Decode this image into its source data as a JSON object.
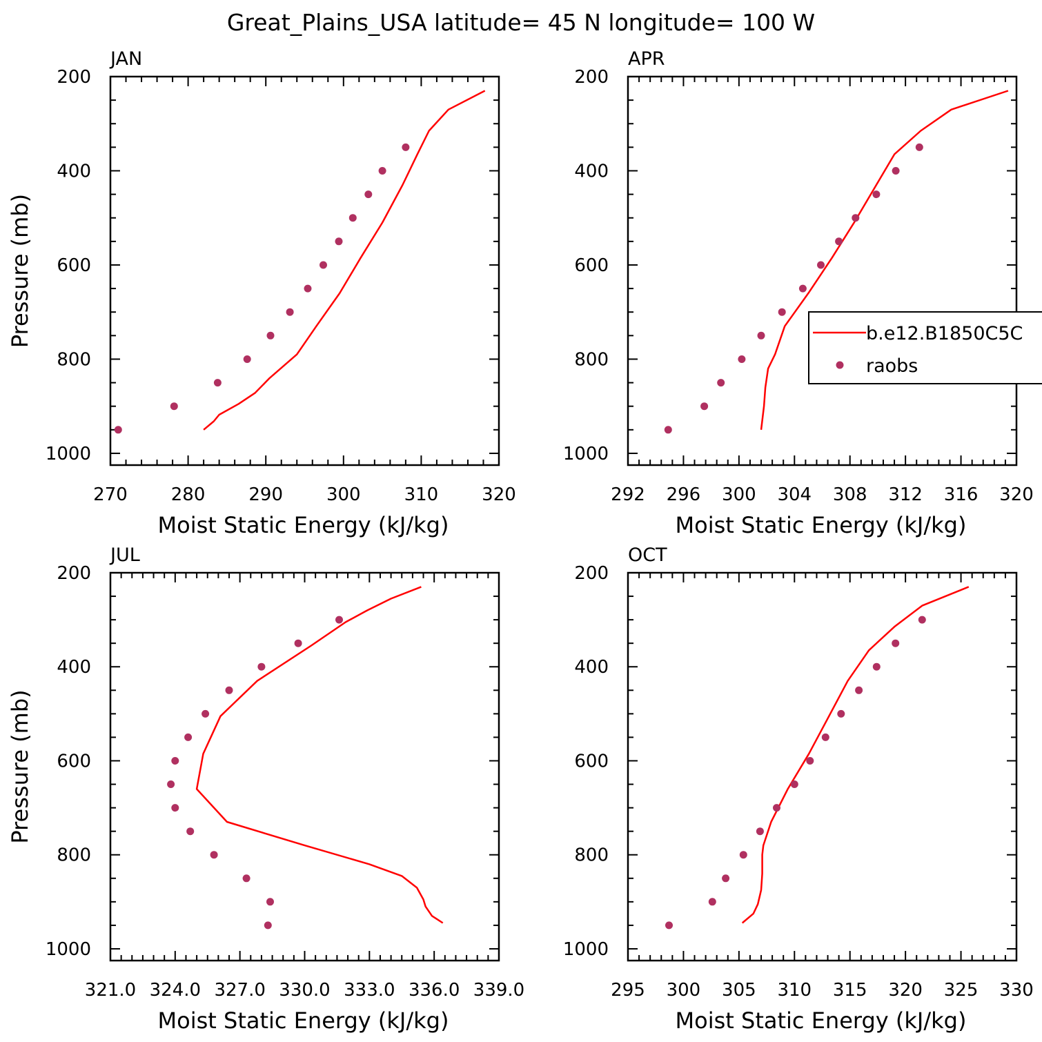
{
  "figure_title": "Great_Plains_USA  latitude= 45 N longitude= 100 W",
  "colors": {
    "model": "#ff0000",
    "obs": "#b03060",
    "axes": "#000000"
  },
  "legend": {
    "model_label": "b.e12.B1850C5C",
    "obs_label": "raobs",
    "placement": "right, inside APR panel"
  },
  "chart_data": [
    {
      "type": "line",
      "panel": "JAN",
      "xlabel": "Moist Static Energy (kJ/kg)",
      "ylabel": "Pressure (mb)",
      "xlim": [
        270,
        320
      ],
      "ylim": [
        1025,
        200
      ],
      "y_inverted": true,
      "xticks": [
        270,
        280,
        290,
        300,
        310,
        320
      ],
      "xtick_labels": [
        "270",
        "280",
        "290",
        "300",
        "310",
        "320"
      ],
      "yticks": [
        200,
        400,
        600,
        800,
        1000
      ],
      "ytick_labels": [
        "200",
        "400",
        "600",
        "800",
        "1000"
      ],
      "series": [
        {
          "name": "b.e12.B1850C5C",
          "kind": "line",
          "points": [
            [
              318.2,
              230
            ],
            [
              313.5,
              270
            ],
            [
              311.0,
              315
            ],
            [
              309.5,
              365
            ],
            [
              307.6,
              430
            ],
            [
              305.0,
              510
            ],
            [
              302.2,
              585
            ],
            [
              299.5,
              660
            ],
            [
              296.5,
              730
            ],
            [
              294.0,
              790
            ],
            [
              290.5,
              840
            ],
            [
              288.6,
              872
            ],
            [
              286.5,
              895
            ],
            [
              284.0,
              918
            ],
            [
              283.3,
              932
            ],
            [
              282.0,
              950
            ]
          ]
        },
        {
          "name": "raobs",
          "kind": "scatter",
          "points": [
            [
              308.0,
              350
            ],
            [
              305.0,
              400
            ],
            [
              303.2,
              450
            ],
            [
              301.2,
              500
            ],
            [
              299.4,
              550
            ],
            [
              297.4,
              600
            ],
            [
              295.4,
              650
            ],
            [
              293.1,
              700
            ],
            [
              290.6,
              750
            ],
            [
              287.6,
              800
            ],
            [
              283.8,
              850
            ],
            [
              278.2,
              900
            ],
            [
              271.0,
              950
            ]
          ]
        }
      ]
    },
    {
      "type": "line",
      "panel": "APR",
      "xlabel": "Moist Static Energy (kJ/kg)",
      "ylabel": "",
      "xlim": [
        292,
        320
      ],
      "ylim": [
        1025,
        200
      ],
      "y_inverted": true,
      "xticks": [
        292,
        296,
        300,
        304,
        308,
        312,
        316,
        320
      ],
      "xtick_labels": [
        "292",
        "296",
        "300",
        "304",
        "308",
        "312",
        "316",
        "320"
      ],
      "yticks": [
        200,
        400,
        600,
        800,
        1000
      ],
      "ytick_labels": [
        "200",
        "400",
        "600",
        "800",
        "1000"
      ],
      "series": [
        {
          "name": "b.e12.B1850C5C",
          "kind": "line",
          "points": [
            [
              319.4,
              230
            ],
            [
              315.3,
              270
            ],
            [
              313.1,
              315
            ],
            [
              311.2,
              365
            ],
            [
              309.9,
              430
            ],
            [
              308.3,
              510
            ],
            [
              306.7,
              585
            ],
            [
              305.0,
              660
            ],
            [
              303.3,
              730
            ],
            [
              302.6,
              790
            ],
            [
              302.1,
              820
            ],
            [
              301.9,
              860
            ],
            [
              301.8,
              900
            ],
            [
              301.6,
              950
            ]
          ]
        },
        {
          "name": "raobs",
          "kind": "scatter",
          "points": [
            [
              313.0,
              350
            ],
            [
              311.3,
              400
            ],
            [
              309.9,
              450
            ],
            [
              308.4,
              500
            ],
            [
              307.2,
              550
            ],
            [
              305.9,
              600
            ],
            [
              304.6,
              650
            ],
            [
              303.1,
              700
            ],
            [
              301.6,
              750
            ],
            [
              300.2,
              800
            ],
            [
              298.7,
              850
            ],
            [
              297.5,
              900
            ],
            [
              294.9,
              950
            ]
          ]
        }
      ]
    },
    {
      "type": "line",
      "panel": "JUL",
      "xlabel": "Moist Static Energy (kJ/kg)",
      "ylabel": "Pressure (mb)",
      "xlim": [
        321,
        339
      ],
      "ylim": [
        1025,
        200
      ],
      "y_inverted": true,
      "xticks": [
        321,
        324,
        327,
        330,
        333,
        336,
        339
      ],
      "xtick_labels": [
        "321.0",
        "324.0",
        "327.0",
        "330.0",
        "333.0",
        "336.0",
        "339.0"
      ],
      "yticks": [
        200,
        400,
        600,
        800,
        1000
      ],
      "ytick_labels": [
        "200",
        "400",
        "600",
        "800",
        "1000"
      ],
      "series": [
        {
          "name": "b.e12.B1850C5C",
          "kind": "line",
          "points": [
            [
              335.4,
              230
            ],
            [
              334.0,
              255
            ],
            [
              332.9,
              280
            ],
            [
              331.9,
              305
            ],
            [
              330.3,
              355
            ],
            [
              327.8,
              430
            ],
            [
              326.1,
              505
            ],
            [
              325.3,
              585
            ],
            [
              325.0,
              660
            ],
            [
              326.4,
              730
            ],
            [
              330.0,
              780
            ],
            [
              333.0,
              820
            ],
            [
              334.5,
              845
            ],
            [
              335.2,
              870
            ],
            [
              335.5,
              895
            ],
            [
              335.6,
              910
            ],
            [
              335.9,
              930
            ],
            [
              336.4,
              945
            ]
          ]
        },
        {
          "name": "raobs",
          "kind": "scatter",
          "points": [
            [
              331.6,
              300
            ],
            [
              329.7,
              350
            ],
            [
              328.0,
              400
            ],
            [
              326.5,
              450
            ],
            [
              325.4,
              500
            ],
            [
              324.6,
              550
            ],
            [
              324.0,
              600
            ],
            [
              323.8,
              650
            ],
            [
              324.0,
              700
            ],
            [
              324.7,
              750
            ],
            [
              325.8,
              800
            ],
            [
              327.3,
              850
            ],
            [
              328.4,
              900
            ],
            [
              328.3,
              950
            ]
          ]
        }
      ]
    },
    {
      "type": "line",
      "panel": "OCT",
      "xlabel": "Moist Static Energy (kJ/kg)",
      "ylabel": "",
      "xlim": [
        295,
        330
      ],
      "ylim": [
        1025,
        200
      ],
      "y_inverted": true,
      "xticks": [
        295,
        300,
        305,
        310,
        315,
        320,
        325,
        330
      ],
      "xtick_labels": [
        "295",
        "300",
        "305",
        "310",
        "315",
        "320",
        "325",
        "330"
      ],
      "yticks": [
        200,
        400,
        600,
        800,
        1000
      ],
      "ytick_labels": [
        "200",
        "400",
        "600",
        "800",
        "1000"
      ],
      "series": [
        {
          "name": "b.e12.B1850C5C",
          "kind": "line",
          "points": [
            [
              325.7,
              230
            ],
            [
              321.5,
              270
            ],
            [
              319.0,
              315
            ],
            [
              316.7,
              365
            ],
            [
              314.8,
              430
            ],
            [
              313.0,
              510
            ],
            [
              311.3,
              585
            ],
            [
              309.4,
              660
            ],
            [
              307.9,
              730
            ],
            [
              307.2,
              780
            ],
            [
              307.1,
              800
            ],
            [
              307.1,
              840
            ],
            [
              307.0,
              875
            ],
            [
              306.7,
              905
            ],
            [
              306.3,
              925
            ],
            [
              305.3,
              945
            ]
          ]
        },
        {
          "name": "raobs",
          "kind": "scatter",
          "points": [
            [
              321.5,
              300
            ],
            [
              319.1,
              350
            ],
            [
              317.4,
              400
            ],
            [
              315.8,
              450
            ],
            [
              314.2,
              500
            ],
            [
              312.8,
              550
            ],
            [
              311.4,
              600
            ],
            [
              310.0,
              650
            ],
            [
              308.4,
              700
            ],
            [
              306.9,
              750
            ],
            [
              305.4,
              800
            ],
            [
              303.8,
              850
            ],
            [
              302.6,
              900
            ],
            [
              298.7,
              950
            ]
          ]
        }
      ]
    }
  ]
}
